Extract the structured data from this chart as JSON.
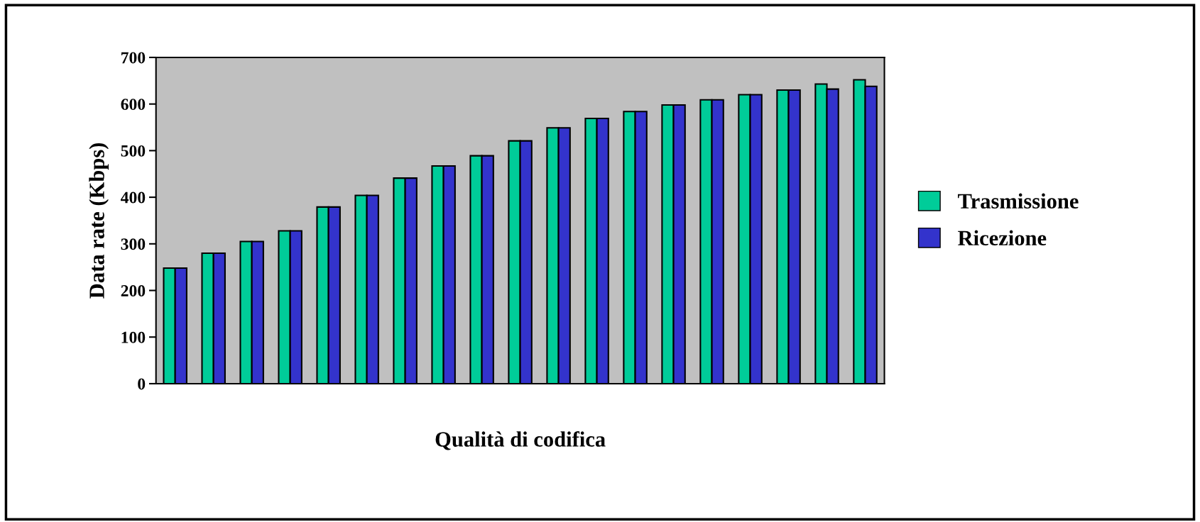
{
  "chart_data": {
    "type": "bar",
    "xlabel": "Qualità di codifica",
    "ylabel": "Data rate (Kbps)",
    "categories": [
      null,
      null,
      null,
      null,
      null,
      null,
      null,
      null,
      null,
      null,
      null,
      null,
      null,
      null,
      null,
      null,
      null,
      null,
      null
    ],
    "series": [
      {
        "name": "Trasmissione",
        "color": "#00cc99",
        "values": [
          248,
          280,
          305,
          328,
          379,
          404,
          441,
          467,
          489,
          521,
          549,
          569,
          584,
          598,
          609,
          620,
          630,
          643,
          652
        ]
      },
      {
        "name": "Ricezione",
        "color": "#3333cc",
        "values": [
          248,
          280,
          305,
          328,
          379,
          404,
          441,
          467,
          489,
          521,
          549,
          569,
          584,
          598,
          609,
          620,
          630,
          632,
          638
        ]
      }
    ],
    "ylim": [
      0,
      700
    ],
    "yticks": [
      0,
      100,
      200,
      300,
      400,
      500,
      600,
      700
    ],
    "grid": false,
    "legend": "right"
  }
}
